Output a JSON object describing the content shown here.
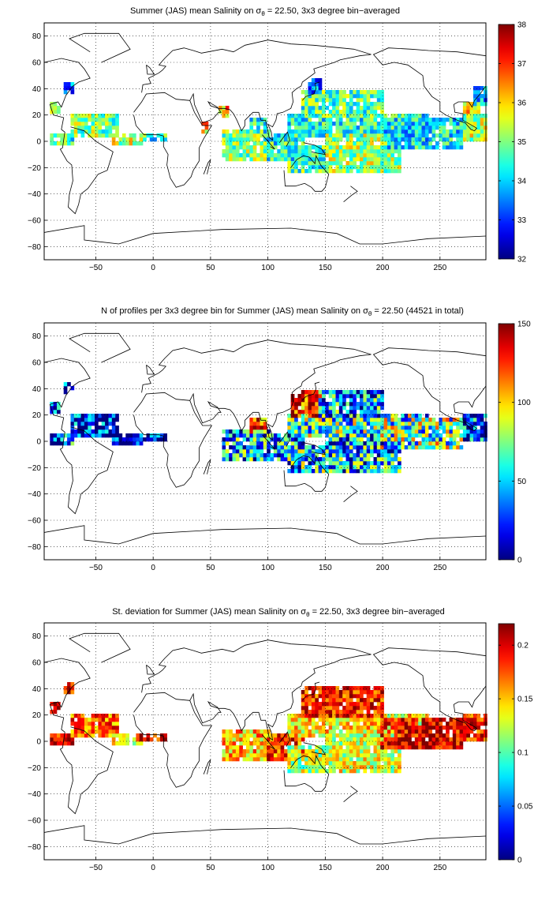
{
  "chart_data": [
    {
      "type": "heatmap",
      "title": "Summer (JAS) mean Salinity on σ",
      "title_sub": "θ",
      "title_after": " = 22.50, 3x3 degree bin−averaged",
      "xlim": [
        -95,
        290
      ],
      "ylim": [
        -90,
        90
      ],
      "xticks": [
        -50,
        0,
        50,
        100,
        150,
        200,
        250
      ],
      "yticks": [
        -80,
        -60,
        -40,
        -20,
        0,
        20,
        40,
        60,
        80
      ],
      "grid": true,
      "colorbar": {
        "range": [
          32,
          38
        ],
        "ticks": [
          32,
          33,
          34,
          35,
          36,
          37,
          38
        ],
        "colormap": "jet"
      },
      "regions": [
        {
          "lon": [
            -90,
            -70
          ],
          "lat": [
            -2,
            6
          ],
          "value": 34.6
        },
        {
          "lon": [
            -90,
            -82
          ],
          "lat": [
            22,
            30
          ],
          "value": 35.8
        },
        {
          "lon": [
            -78,
            -70
          ],
          "lat": [
            36,
            44
          ],
          "value": 33.3
        },
        {
          "lon": [
            -70,
            -30
          ],
          "lat": [
            4,
            20
          ],
          "value": 35.0
        },
        {
          "lon": [
            -36,
            -10
          ],
          "lat": [
            -2,
            6
          ],
          "value": 35.4
        },
        {
          "lon": [
            -10,
            12
          ],
          "lat": [
            0,
            4
          ],
          "value": 34.5
        },
        {
          "lon": [
            42,
            48
          ],
          "lat": [
            8,
            14
          ],
          "value": 36.1
        },
        {
          "lon": [
            58,
            64
          ],
          "lat": [
            20,
            26
          ],
          "value": 36.2
        },
        {
          "lon": [
            60,
            100
          ],
          "lat": [
            -14,
            8
          ],
          "value": 35.0
        },
        {
          "lon": [
            85,
            98
          ],
          "lat": [
            6,
            18
          ],
          "value": 34.5
        },
        {
          "lon": [
            100,
            130
          ],
          "lat": [
            -14,
            4
          ],
          "value": 34.4
        },
        {
          "lon": [
            118,
            150
          ],
          "lat": [
            -22,
            -4
          ],
          "value": 34.7
        },
        {
          "lon": [
            118,
            240
          ],
          "lat": [
            4,
            20
          ],
          "value": 34.4
        },
        {
          "lon": [
            130,
            200
          ],
          "lat": [
            20,
            38
          ],
          "value": 34.7
        },
        {
          "lon": [
            135,
            145
          ],
          "lat": [
            36,
            48
          ],
          "value": 33.5
        },
        {
          "lon": [
            150,
            215
          ],
          "lat": [
            -24,
            4
          ],
          "value": 35.2
        },
        {
          "lon": [
            200,
            270
          ],
          "lat": [
            -4,
            16
          ],
          "value": 34.2
        },
        {
          "lon": [
            270,
            290
          ],
          "lat": [
            0,
            20
          ],
          "value": 35.3
        },
        {
          "lon": [
            272,
            284
          ],
          "lat": [
            22,
            30
          ],
          "value": 35.8
        },
        {
          "lon": [
            280,
            290
          ],
          "lat": [
            28,
            40
          ],
          "value": 33.6
        }
      ]
    },
    {
      "type": "heatmap",
      "title": "N of profiles per 3x3 degree bin for Summer (JAS) mean Salinity on σ",
      "title_sub": "θ",
      "title_after": " = 22.50 (44521 in total)",
      "xlim": [
        -95,
        290
      ],
      "ylim": [
        -90,
        90
      ],
      "xticks": [
        -50,
        0,
        50,
        100,
        150,
        200,
        250
      ],
      "yticks": [
        -80,
        -60,
        -40,
        -20,
        0,
        20,
        40,
        60,
        80
      ],
      "grid": true,
      "colorbar": {
        "range": [
          0,
          150
        ],
        "ticks": [
          0,
          50,
          100,
          150
        ],
        "colormap": "jet"
      },
      "regions": [
        {
          "lon": [
            -90,
            -70
          ],
          "lat": [
            -2,
            6
          ],
          "value": 30
        },
        {
          "lon": [
            -90,
            -82
          ],
          "lat": [
            22,
            30
          ],
          "value": 30
        },
        {
          "lon": [
            -78,
            -70
          ],
          "lat": [
            36,
            44
          ],
          "value": 10
        },
        {
          "lon": [
            -70,
            -30
          ],
          "lat": [
            4,
            20
          ],
          "value": 12
        },
        {
          "lon": [
            -36,
            -10
          ],
          "lat": [
            -2,
            6
          ],
          "value": 8
        },
        {
          "lon": [
            -10,
            12
          ],
          "lat": [
            0,
            4
          ],
          "value": 5
        },
        {
          "lon": [
            60,
            100
          ],
          "lat": [
            -14,
            8
          ],
          "value": 45
        },
        {
          "lon": [
            85,
            98
          ],
          "lat": [
            6,
            18
          ],
          "value": 110
        },
        {
          "lon": [
            100,
            130
          ],
          "lat": [
            -14,
            4
          ],
          "value": 40
        },
        {
          "lon": [
            118,
            150
          ],
          "lat": [
            -22,
            -4
          ],
          "value": 50
        },
        {
          "lon": [
            118,
            240
          ],
          "lat": [
            4,
            20
          ],
          "value": 60
        },
        {
          "lon": [
            122,
            145
          ],
          "lat": [
            18,
            38
          ],
          "value": 135
        },
        {
          "lon": [
            145,
            200
          ],
          "lat": [
            20,
            38
          ],
          "value": 40
        },
        {
          "lon": [
            150,
            215
          ],
          "lat": [
            -24,
            4
          ],
          "value": 45
        },
        {
          "lon": [
            200,
            270
          ],
          "lat": [
            -4,
            16
          ],
          "value": 70
        },
        {
          "lon": [
            270,
            290
          ],
          "lat": [
            0,
            20
          ],
          "value": 25
        }
      ]
    },
    {
      "type": "heatmap",
      "title": "St. deviation for Summer (JAS) mean Salinity on σ",
      "title_sub": "θ",
      "title_after": " = 22.50, 3x3 degree bin−averaged",
      "xlim": [
        -95,
        290
      ],
      "ylim": [
        -90,
        90
      ],
      "xticks": [
        -50,
        0,
        50,
        100,
        150,
        200,
        250
      ],
      "yticks": [
        -80,
        -60,
        -40,
        -20,
        0,
        20,
        40,
        60,
        80
      ],
      "grid": true,
      "colorbar": {
        "range": [
          0,
          0.22
        ],
        "ticks": [
          0,
          0.05,
          0.1,
          0.15,
          0.2
        ],
        "colormap": "jet"
      },
      "regions": [
        {
          "lon": [
            -90,
            -70
          ],
          "lat": [
            -2,
            6
          ],
          "value": 0.2
        },
        {
          "lon": [
            -90,
            -82
          ],
          "lat": [
            22,
            30
          ],
          "value": 0.21
        },
        {
          "lon": [
            -78,
            -70
          ],
          "lat": [
            36,
            44
          ],
          "value": 0.2
        },
        {
          "lon": [
            -70,
            -30
          ],
          "lat": [
            4,
            20
          ],
          "value": 0.17
        },
        {
          "lon": [
            -36,
            -10
          ],
          "lat": [
            -2,
            6
          ],
          "value": 0.14
        },
        {
          "lon": [
            -10,
            12
          ],
          "lat": [
            0,
            4
          ],
          "value": 0.2
        },
        {
          "lon": [
            60,
            100
          ],
          "lat": [
            -14,
            8
          ],
          "value": 0.15
        },
        {
          "lon": [
            100,
            130
          ],
          "lat": [
            -14,
            4
          ],
          "value": 0.18
        },
        {
          "lon": [
            118,
            150
          ],
          "lat": [
            -22,
            -4
          ],
          "value": 0.12
        },
        {
          "lon": [
            118,
            240
          ],
          "lat": [
            4,
            20
          ],
          "value": 0.14
        },
        {
          "lon": [
            130,
            200
          ],
          "lat": [
            20,
            40
          ],
          "value": 0.19
        },
        {
          "lon": [
            150,
            215
          ],
          "lat": [
            -24,
            4
          ],
          "value": 0.13
        },
        {
          "lon": [
            200,
            270
          ],
          "lat": [
            -4,
            16
          ],
          "value": 0.2
        },
        {
          "lon": [
            270,
            290
          ],
          "lat": [
            0,
            20
          ],
          "value": 0.19
        }
      ]
    }
  ]
}
